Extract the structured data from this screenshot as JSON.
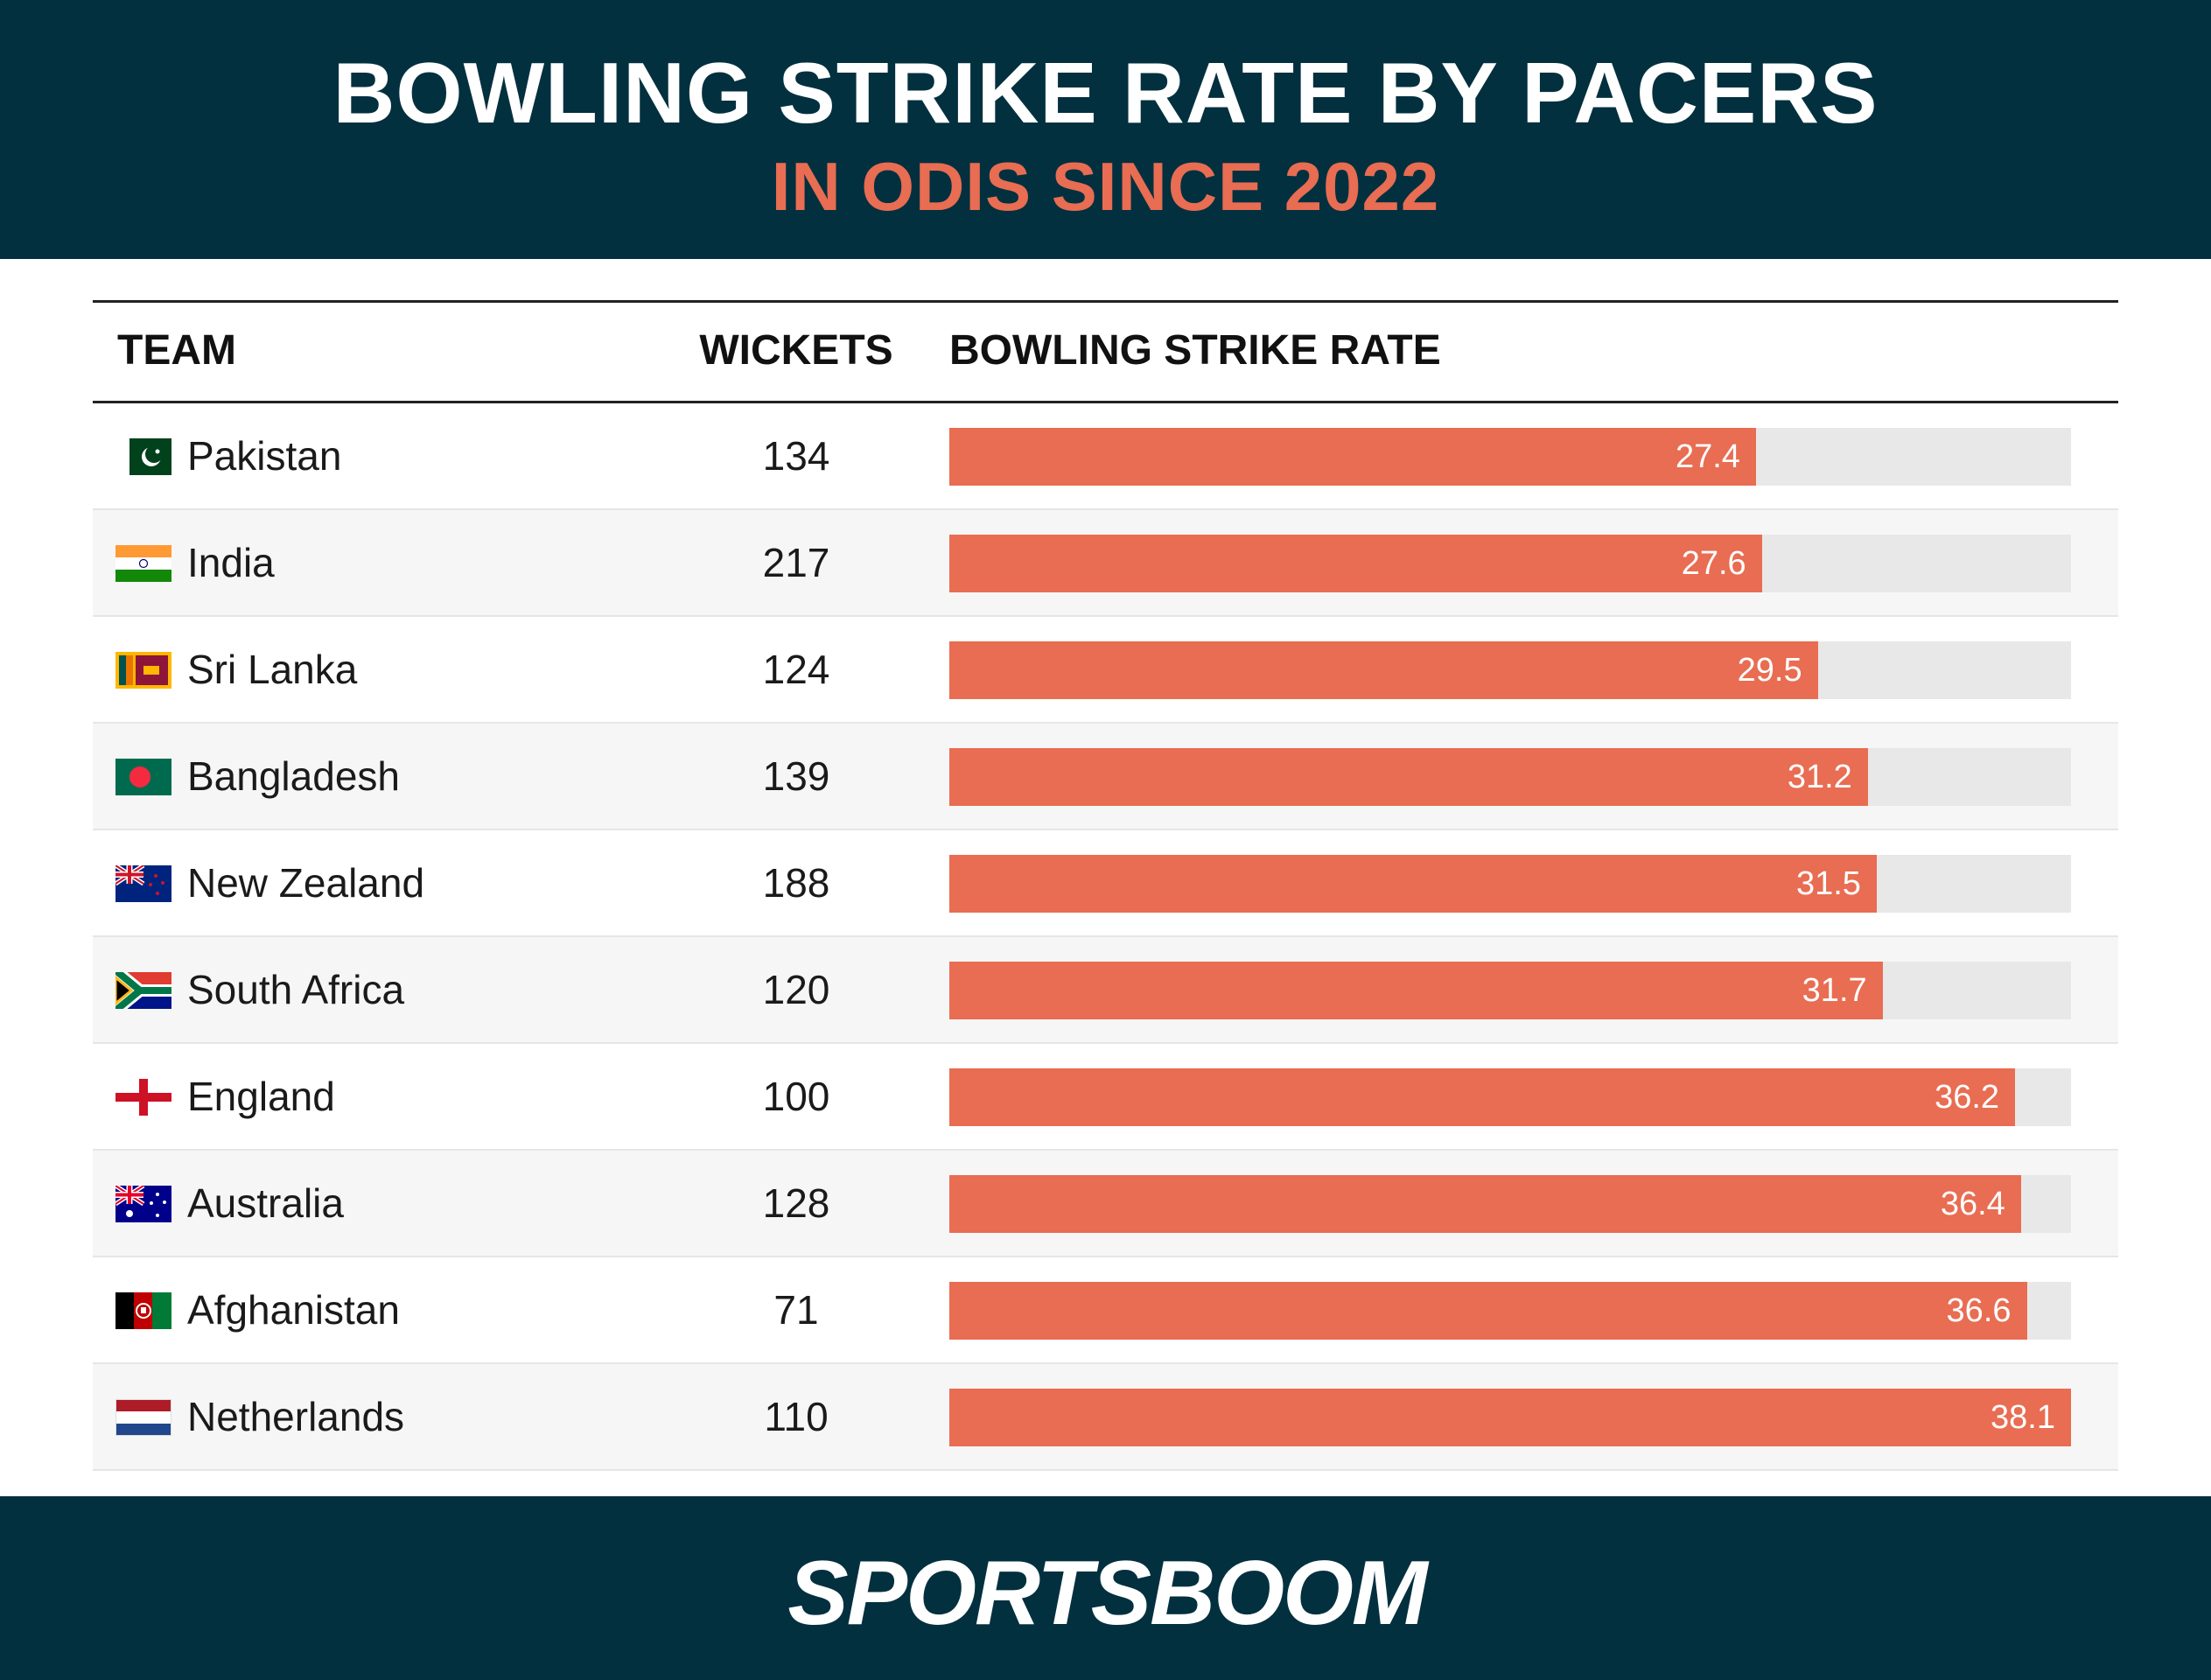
{
  "header": {
    "title": "BOWLING STRIKE RATE BY PACERS",
    "subtitle": "IN ODIS SINCE 2022"
  },
  "columns": {
    "team": "TEAM",
    "wickets": "WICKETS",
    "strike_rate": "BOWLING STRIKE RATE"
  },
  "rows": [
    {
      "team": "Pakistan",
      "wickets": "134",
      "strike_rate": "27.4",
      "flag": "pakistan-flag-icon"
    },
    {
      "team": "India",
      "wickets": "217",
      "strike_rate": "27.6",
      "flag": "india-flag-icon"
    },
    {
      "team": "Sri Lanka",
      "wickets": "124",
      "strike_rate": "29.5",
      "flag": "sri-lanka-flag-icon"
    },
    {
      "team": "Bangladesh",
      "wickets": "139",
      "strike_rate": "31.2",
      "flag": "bangladesh-flag-icon"
    },
    {
      "team": "New Zealand",
      "wickets": "188",
      "strike_rate": "31.5",
      "flag": "new-zealand-flag-icon"
    },
    {
      "team": "South Africa",
      "wickets": "120",
      "strike_rate": "31.7",
      "flag": "south-africa-flag-icon"
    },
    {
      "team": "England",
      "wickets": "100",
      "strike_rate": "36.2",
      "flag": "england-flag-icon"
    },
    {
      "team": "Australia",
      "wickets": "128",
      "strike_rate": "36.4",
      "flag": "australia-flag-icon"
    },
    {
      "team": "Afghanistan",
      "wickets": "71",
      "strike_rate": "36.6",
      "flag": "afghanistan-flag-icon"
    },
    {
      "team": "Netherlands",
      "wickets": "110",
      "strike_rate": "38.1",
      "flag": "netherlands-flag-icon"
    }
  ],
  "chart_data": {
    "type": "bar",
    "orientation": "horizontal",
    "title": "BOWLING STRIKE RATE BY PACERS",
    "subtitle": "IN ODIS SINCE 2022",
    "categories": [
      "Pakistan",
      "India",
      "Sri Lanka",
      "Bangladesh",
      "New Zealand",
      "South Africa",
      "England",
      "Australia",
      "Afghanistan",
      "Netherlands"
    ],
    "values": [
      27.4,
      27.6,
      29.5,
      31.2,
      31.5,
      31.7,
      36.2,
      36.4,
      36.6,
      38.1
    ],
    "xlim": [
      0,
      38.1
    ],
    "grid": false
  },
  "colors": {
    "header_bg": "#03303f",
    "accent": "#e86d52",
    "track": "#e8e8e8"
  },
  "footer": {
    "logo_text": "SPORTSBOOM"
  }
}
